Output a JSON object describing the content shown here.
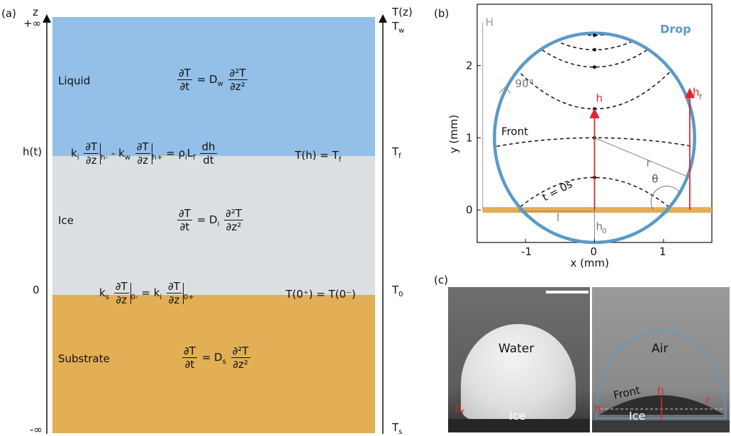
{
  "panels": {
    "a": "(a)",
    "b": "(b)",
    "c": "(c)"
  },
  "panel_a": {
    "axis_left": {
      "top_label": "z",
      "plus_inf": "+∞",
      "minus_inf": "-∞",
      "h_t": "h(t)",
      "zero": "0"
    },
    "axis_right": {
      "top_label": "T(z)",
      "Tw": "T",
      "Tw_sub": "w",
      "Tf": "T",
      "Tf_sub": "f",
      "T0": "T",
      "T0_sub": "0",
      "Ts": "T",
      "Ts_sub": "s"
    },
    "regions": {
      "liquid": {
        "label": "Liquid",
        "color": "#94bfe8",
        "eq_lhs_num": "∂T",
        "eq_lhs_den": "∂t",
        "eq_coef": "= D",
        "eq_coef_sub": "w",
        "eq_rhs_num": "∂²T",
        "eq_rhs_den": "∂z²"
      },
      "ice": {
        "label": "Ice",
        "color": "#dcdfe1",
        "eq_lhs_num": "∂T",
        "eq_lhs_den": "∂t",
        "eq_coef": "= D",
        "eq_coef_sub": "i",
        "eq_rhs_num": "∂²T",
        "eq_rhs_den": "∂z²"
      },
      "substrate": {
        "label": "Substrate",
        "color": "#e2ae56",
        "eq_lhs_num": "∂T",
        "eq_lhs_den": "∂t",
        "eq_coef": "= D",
        "eq_coef_sub": "s",
        "eq_rhs_num": "∂²T",
        "eq_rhs_den": "∂z²"
      }
    },
    "interface_top": {
      "stefan_k1": "k",
      "stefan_k1_sub": "i",
      "stefan_eval1": "h-",
      "stefan_minus": "- k",
      "stefan_k2_sub": "w",
      "stefan_eval2": "h+",
      "stefan_rho": "= ρ",
      "stefan_rho_sub": "i",
      "stefan_L": "L",
      "stefan_L_sub": "f",
      "stefan_dh": "dh",
      "stefan_dt": "dt",
      "cond": "T(h)  =  T",
      "cond_sub": "f"
    },
    "interface_bottom": {
      "k1": "k",
      "k1_sub": "s",
      "eval1": "0-",
      "eq": "= k",
      "k2_sub": "i",
      "eval2": "0+",
      "cond": "T(0⁺)  =  T(0⁻)"
    },
    "grad_num": "∂T",
    "grad_den": "∂z"
  },
  "panel_b": {
    "title": "Drop",
    "xlabel": "x (mm)",
    "ylabel": "y (mm)",
    "xticks": [
      "-1",
      "0",
      "1"
    ],
    "yticks": [
      "0",
      "1",
      "2"
    ],
    "annotations": {
      "H": "H",
      "angle": "90°",
      "h": "h",
      "hf": "h",
      "hf_sub": "f",
      "front": "Front",
      "r": "r",
      "theta": "θ",
      "t0": "t = 0s",
      "l": "l",
      "h0": "h",
      "h0_sub": "0"
    },
    "colors": {
      "drop": "#5b9ac8",
      "substrate": "#e2ae56",
      "arrow": "#e0262b"
    }
  },
  "chart_data": {
    "type": "line",
    "xlabel": "x (mm)",
    "ylabel": "y (mm)",
    "xlim": [
      -1.7,
      1.7
    ],
    "ylim": [
      -0.45,
      2.85
    ],
    "drop": {
      "center": [
        0,
        1.0
      ],
      "radius": 1.45
    },
    "front_curves_y_at_center": [
      0.45,
      1.0,
      1.4,
      1.98,
      2.22,
      2.42
    ],
    "front_curve_points_y": [
      0.45,
      1.0,
      1.4,
      1.98,
      2.22,
      2.42
    ],
    "h": 1.4,
    "hf_x": 1.38,
    "hf": 1.68,
    "l": 1.1,
    "h0": -0.45
  },
  "panel_c": {
    "left": {
      "water": "Water",
      "ice": "Ice",
      "hf": "h",
      "hf_sub": "f"
    },
    "right": {
      "air": "Air",
      "front": "Front",
      "h": "h",
      "ice": "Ice",
      "hf": "h",
      "hf_sub": "f",
      "r": "r"
    }
  }
}
